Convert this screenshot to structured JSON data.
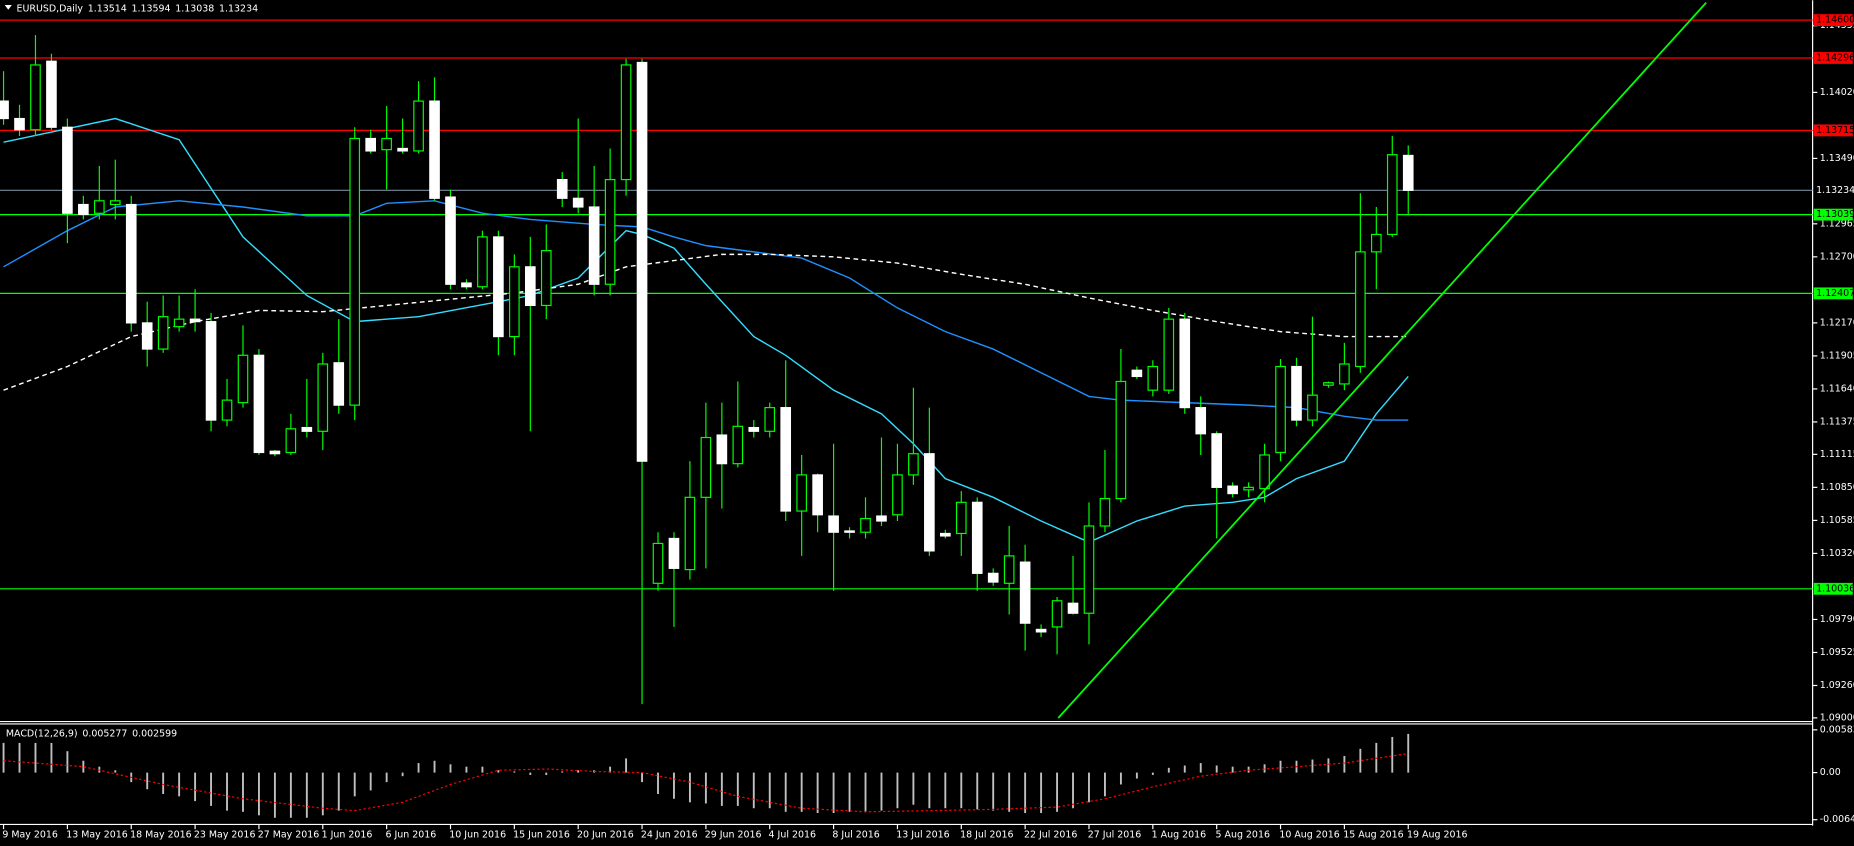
{
  "chart_data": [
    {
      "type": "candlestick",
      "title": "EURUSD,Daily",
      "categories": [
        "9 May 2016",
        null,
        null,
        null,
        "13 May 2016",
        null,
        null,
        null,
        "18 May 2016",
        null,
        null,
        null,
        "23 May 2016",
        null,
        null,
        null,
        "27 May 2016",
        null,
        null,
        null,
        "1 Jun 2016",
        null,
        null,
        null,
        "6 Jun 2016",
        null,
        null,
        null,
        "10 Jun 2016",
        null,
        null,
        null,
        "15 Jun 2016",
        null,
        null,
        null,
        "20 Jun 2016",
        null,
        null,
        null,
        "24 Jun 2016",
        null,
        null,
        null,
        "29 Jun 2016",
        null,
        null,
        null,
        "4 Jul 2016",
        null,
        null,
        null,
        "8 Jul 2016",
        null,
        null,
        null,
        "13 Jul 2016",
        null,
        null,
        null,
        "18 Jul 2016",
        null,
        null,
        null,
        "22 Jul 2016",
        null,
        null,
        null,
        "27 Jul 2016",
        null,
        null,
        null,
        "1 Aug 2016",
        null,
        null,
        null,
        "5 Aug 2016",
        null,
        null,
        null,
        "10 Aug 2016",
        null,
        null,
        null,
        "15 Aug 2016",
        null,
        null,
        null,
        "19 Aug 2016"
      ],
      "open": [
        1.1395,
        1.1381,
        1.1372,
        1.1427,
        1.1374,
        1.1312,
        1.1305,
        1.1312,
        1.1312,
        1.1217,
        1.1196,
        1.1214,
        1.122,
        1.1218,
        1.1139,
        1.1153,
        1.1191,
        1.1114,
        1.1113,
        1.1133,
        1.113,
        1.1185,
        1.1151,
        1.1365,
        1.1356,
        1.1357,
        1.1355,
        1.1395,
        1.1318,
        1.1249,
        1.1246,
        1.1286,
        1.1206,
        1.1262,
        1.1231,
        1.1332,
        1.1317,
        1.131,
        1.1248,
        1.1332,
        1.1426,
        1.1008,
        1.1044,
        1.1019,
        1.1077,
        1.1127,
        1.1104,
        1.1133,
        1.113,
        1.1149,
        1.1066,
        1.1095,
        1.1062,
        1.105,
        1.1049,
        1.1062,
        1.1063,
        1.1095,
        1.1112,
        1.1048,
        1.1048,
        1.1073,
        1.1016,
        1.1008,
        1.1025,
        1.0971,
        1.0973,
        1.0992,
        1.0984,
        1.1054,
        1.1076,
        1.1179,
        1.1163,
        1.1163,
        1.122,
        1.1149,
        1.1128,
        1.1086,
        1.1083,
        1.1084,
        1.1113,
        1.1182,
        1.1139,
        1.1167,
        1.1168,
        1.1182,
        1.1274,
        1.1288,
        1.13514
      ],
      "high": [
        1.1419,
        1.1392,
        1.1448,
        1.1433,
        1.1381,
        1.1319,
        1.1343,
        1.1348,
        1.1319,
        1.1234,
        1.1239,
        1.1239,
        1.1244,
        1.1225,
        1.1172,
        1.1215,
        1.1196,
        1.1115,
        1.1144,
        1.1172,
        1.1193,
        1.122,
        1.1374,
        1.1372,
        1.1391,
        1.1381,
        1.1411,
        1.1414,
        1.1324,
        1.1252,
        1.1291,
        1.1291,
        1.1272,
        1.1286,
        1.1296,
        1.1338,
        1.1381,
        1.1343,
        1.1357,
        1.1429,
        1.1429,
        1.1049,
        1.1049,
        1.1106,
        1.1153,
        1.1153,
        1.117,
        1.1139,
        1.1153,
        1.1187,
        1.1111,
        1.1096,
        1.112,
        1.1053,
        1.1077,
        1.1125,
        1.112,
        1.1165,
        1.1149,
        1.1051,
        1.1082,
        1.1077,
        1.102,
        1.1054,
        1.1039,
        1.0975,
        1.0997,
        1.103,
        1.1073,
        1.1115,
        1.1196,
        1.1182,
        1.1187,
        1.1229,
        1.1225,
        1.1158,
        1.113,
        1.1089,
        1.1089,
        1.112,
        1.1188,
        1.1189,
        1.1222,
        1.117,
        1.1201,
        1.1321,
        1.131,
        1.1367,
        1.13594
      ],
      "low": [
        1.1376,
        1.1367,
        1.1367,
        1.1372,
        1.1281,
        1.13,
        1.13,
        1.13,
        1.121,
        1.1182,
        1.1193,
        1.121,
        1.121,
        1.113,
        1.1134,
        1.1149,
        1.1111,
        1.111,
        1.1111,
        1.1125,
        1.1115,
        1.1144,
        1.1139,
        1.1353,
        1.1324,
        1.1353,
        1.1353,
        1.1315,
        1.1244,
        1.1244,
        1.1244,
        1.1191,
        1.1191,
        1.113,
        1.122,
        1.131,
        1.1305,
        1.1239,
        1.1239,
        1.1319,
        1.0911,
        1.1002,
        1.0973,
        1.1011,
        1.102,
        1.1068,
        1.1101,
        1.1125,
        1.1125,
        1.1058,
        1.103,
        1.1049,
        1.1002,
        1.1044,
        1.1044,
        1.1054,
        1.1058,
        1.1087,
        1.103,
        1.1044,
        1.103,
        1.1002,
        1.1006,
        1.0983,
        1.0954,
        1.0965,
        1.0951,
        1.0983,
        1.0959,
        1.1049,
        1.1073,
        1.1172,
        1.1158,
        1.116,
        1.1144,
        1.1111,
        1.1044,
        1.1077,
        1.1077,
        1.1073,
        1.1106,
        1.1134,
        1.1134,
        1.1165,
        1.1163,
        1.1177,
        1.1244,
        1.1286,
        1.13038
      ],
      "close": [
        1.1381,
        1.1372,
        1.1424,
        1.1374,
        1.1305,
        1.1304,
        1.1315,
        1.1315,
        1.1217,
        1.1196,
        1.1222,
        1.122,
        1.1218,
        1.1139,
        1.1155,
        1.1191,
        1.1113,
        1.1112,
        1.1132,
        1.113,
        1.1184,
        1.1151,
        1.1365,
        1.1355,
        1.1365,
        1.1355,
        1.1395,
        1.1317,
        1.1248,
        1.1246,
        1.1286,
        1.1206,
        1.1262,
        1.1231,
        1.1275,
        1.1317,
        1.131,
        1.1248,
        1.1332,
        1.1424,
        1.1106,
        1.104,
        1.102,
        1.1077,
        1.1125,
        1.1104,
        1.1134,
        1.113,
        1.1149,
        1.1066,
        1.1095,
        1.1063,
        1.1049,
        1.1049,
        1.106,
        1.1058,
        1.1095,
        1.1112,
        1.1034,
        1.1046,
        1.1073,
        1.1016,
        1.1009,
        1.103,
        1.0976,
        1.0969,
        1.0994,
        1.0984,
        1.1054,
        1.1076,
        1.117,
        1.1174,
        1.1182,
        1.122,
        1.1149,
        1.1128,
        1.1085,
        1.108,
        1.1085,
        1.1111,
        1.1182,
        1.1139,
        1.1159,
        1.1169,
        1.1184,
        1.1274,
        1.1288,
        1.1352,
        1.13234
      ],
      "bull_color": "#000000",
      "bear_color": "#ffffff",
      "wick_color": "#00ff00",
      "ylim": [
        1.0898,
        1.1474
      ],
      "yticks": [
        1.14555,
        {
          "value": 1.1402,
          "label": "1.14020"
        },
        {
          "value": 1.1349,
          "label": "1.13490"
        },
        1.12965,
        {
          "value": 1.127,
          "label": "1.12700"
        },
        {
          "value": 1.1217,
          "label": "1.12170"
        },
        1.11905,
        {
          "value": 1.1164,
          "label": "1.11640"
        },
        1.11375,
        1.11115,
        {
          "value": 1.1085,
          "label": "1.10850"
        },
        1.10585,
        {
          "value": 1.1032,
          "label": "1.10320"
        },
        {
          "value": 1.0979,
          "label": "1.09790"
        },
        1.09525,
        {
          "value": 1.0926,
          "label": "1.09260"
        },
        {
          "value": 1.09,
          "label": "1.09000"
        }
      ],
      "lines": [
        {
          "color": "#33ddff",
          "dashed": false,
          "x": [
            0,
            7,
            11,
            15,
            19,
            22,
            26,
            31,
            33,
            36,
            39,
            40,
            42,
            44,
            47,
            49,
            52,
            55,
            57,
            59,
            62,
            65,
            68,
            71,
            74,
            77,
            79,
            81,
            84,
            86,
            88
          ],
          "values": [
            1.1362,
            1.1381,
            1.1364,
            1.1286,
            1.1239,
            1.1218,
            1.1222,
            1.1234,
            1.1239,
            1.1253,
            1.1291,
            1.1288,
            1.1277,
            1.1248,
            1.1206,
            1.1191,
            1.1163,
            1.1144,
            1.112,
            1.1092,
            1.1077,
            1.1058,
            1.1041,
            1.1058,
            1.107,
            1.1073,
            1.1077,
            1.1092,
            1.1106,
            1.1144,
            1.1174
          ]
        },
        {
          "color": "#1e90ff",
          "dashed": false,
          "x": [
            0,
            4,
            7,
            11,
            15,
            19,
            22,
            24,
            27,
            30,
            33,
            37,
            40,
            42,
            44,
            47,
            50,
            53,
            56,
            59,
            62,
            65,
            68,
            70,
            74,
            78,
            81,
            84,
            86,
            88
          ],
          "values": [
            1.1262,
            1.1291,
            1.131,
            1.1315,
            1.131,
            1.1303,
            1.1303,
            1.1313,
            1.1315,
            1.1305,
            1.13,
            1.1296,
            1.1294,
            1.1286,
            1.1279,
            1.1274,
            1.1269,
            1.1253,
            1.1229,
            1.121,
            1.1196,
            1.1177,
            1.1158,
            1.1155,
            1.1153,
            1.1151,
            1.1149,
            1.1142,
            1.1139,
            1.1139
          ]
        },
        {
          "color": "#ffffff",
          "dashed": true,
          "x": [
            0,
            4,
            8,
            12,
            16,
            20,
            24,
            28,
            32,
            36,
            39,
            42,
            45,
            48,
            52,
            56,
            60,
            64,
            68,
            72,
            76,
            80,
            84,
            88
          ],
          "values": [
            1.1163,
            1.1182,
            1.1206,
            1.1218,
            1.1227,
            1.1226,
            1.1231,
            1.1236,
            1.1241,
            1.1248,
            1.1262,
            1.1267,
            1.1272,
            1.1272,
            1.127,
            1.1265,
            1.1256,
            1.1248,
            1.1237,
            1.1227,
            1.1218,
            1.121,
            1.1206,
            1.1206
          ]
        }
      ],
      "levels": [
        {
          "value": 1.146,
          "label": "1.14600",
          "color": "#ff0000"
        },
        {
          "value": 1.14296,
          "label": "1.14296",
          "color": "#ff0000"
        },
        {
          "value": 1.13715,
          "label": "1.13715",
          "color": "#ff0000"
        },
        {
          "value": 1.13039,
          "label": "1.13039",
          "color": "#00ff00"
        },
        {
          "value": 1.12407,
          "label": "1.12407",
          "color": "#00ff00"
        },
        {
          "value": 1.10036,
          "label": "1.10036",
          "color": "#00ff00"
        }
      ],
      "current_price_color": "#778899"
    },
    {
      "type": "macd",
      "title": "MACD(12,26,9)",
      "color": "#c0c0c0",
      "values": [
        0.00405,
        0.00405,
        0.00405,
        0.00405,
        0.00292,
        0.00162,
        0.00081,
        0.00032,
        -0.0013,
        -0.00227,
        -0.00292,
        -0.00324,
        -0.00389,
        -0.00454,
        -0.00519,
        -0.00535,
        -0.00583,
        -0.00616,
        -0.00616,
        -0.00616,
        -0.00583,
        -0.00519,
        -0.00324,
        -0.00243,
        -0.0013,
        -0.00049,
        0.0013,
        0.00162,
        0.00113,
        0.00081,
        0.00081,
        0.00032,
        0.00016,
        -0.00032,
        -0.00032,
        0.00016,
        0.00032,
        0.00032,
        0.00081,
        0.00194,
        -0.0013,
        -0.00292,
        -0.00357,
        -0.00405,
        -0.00421,
        -0.00454,
        -0.00454,
        -0.00486,
        -0.00486,
        -0.00535,
        -0.00535,
        -0.00551,
        -0.00551,
        -0.00535,
        -0.00535,
        -0.00519,
        -0.00486,
        -0.00438,
        -0.00486,
        -0.00486,
        -0.00486,
        -0.00502,
        -0.00519,
        -0.00535,
        -0.00551,
        -0.00551,
        -0.00535,
        -0.00486,
        -0.00405,
        -0.00324,
        -0.00162,
        -0.00081,
        -0.00032,
        0.00065,
        0.00097,
        0.0013,
        0.00097,
        0.00081,
        0.00081,
        0.00113,
        0.00162,
        0.00162,
        0.00178,
        0.00194,
        0.00227,
        0.00324,
        0.00405,
        0.00486,
        0.005277
      ],
      "signal": {
        "color": "#ff0000",
        "x": [
          0,
          5,
          10,
          15,
          20,
          22,
          25,
          28,
          31,
          34,
          37,
          40,
          43,
          46,
          50,
          54,
          58,
          62,
          66,
          69,
          72,
          75,
          78,
          81,
          84,
          88
        ],
        "values": [
          0.00162,
          0.00081,
          -0.00162,
          -0.00357,
          -0.00486,
          -0.00519,
          -0.00405,
          -0.00162,
          0.00032,
          0.00049,
          0.00016,
          0,
          -0.0013,
          -0.00324,
          -0.00486,
          -0.00535,
          -0.00519,
          -0.00502,
          -0.0047,
          -0.00357,
          -0.00194,
          -0.00049,
          0.00032,
          0.00081,
          0.0013,
          0.002599
        ]
      },
      "ylim": [
        -0.006424,
        0.005834
      ],
      "yticks": [
        0.005834,
        {
          "value": 0,
          "label": "0.00"
        },
        -0.006424
      ]
    }
  ]
}
